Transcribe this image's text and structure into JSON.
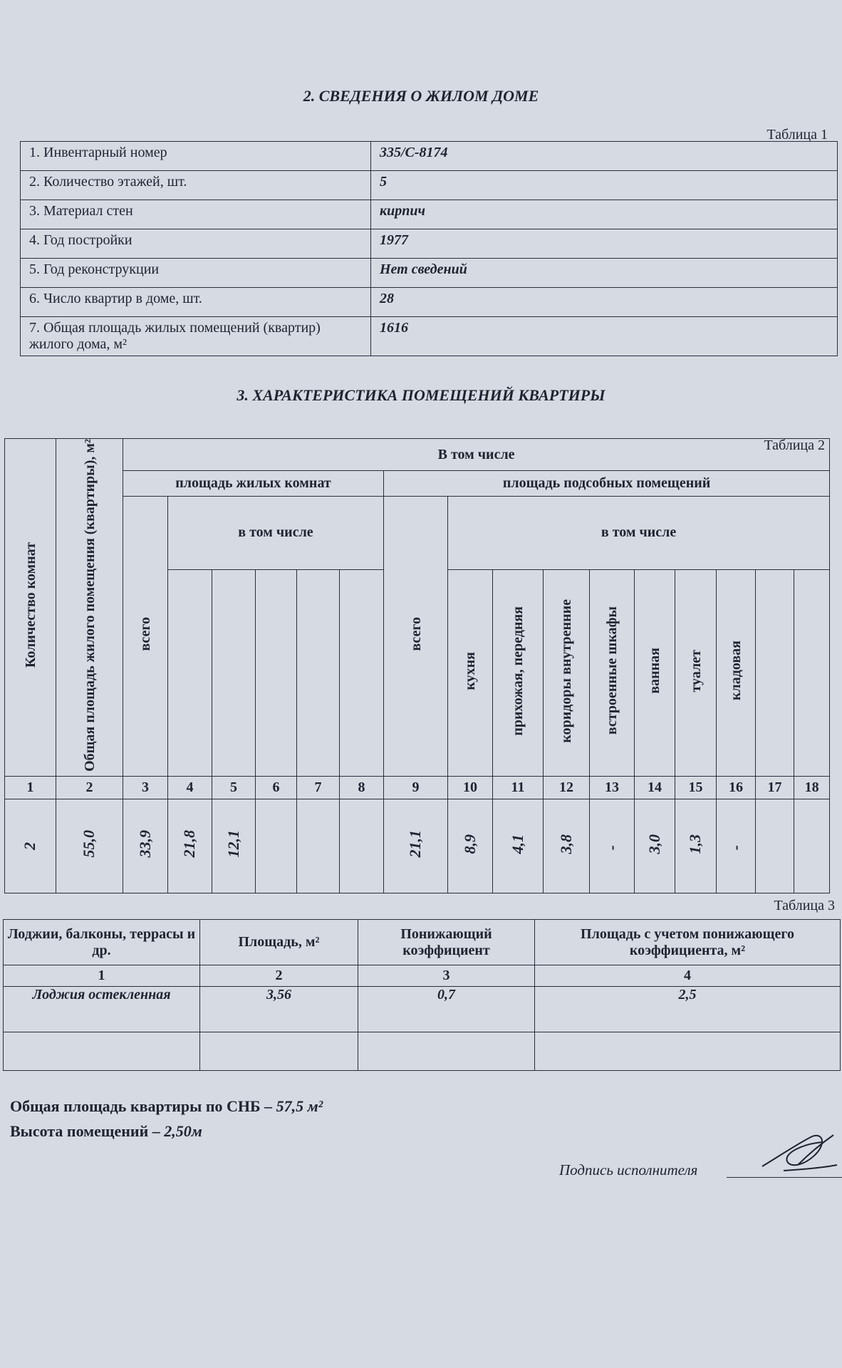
{
  "section2": {
    "title": "2. СВЕДЕНИЯ О ЖИЛОМ ДОМЕ",
    "table_caption": "Таблица 1",
    "rows": [
      {
        "label": "1. Инвентарный номер",
        "value": "335/С-8174"
      },
      {
        "label": "2. Количество этажей, шт.",
        "value": "5"
      },
      {
        "label": "3. Материал стен",
        "value": "кирпич"
      },
      {
        "label": "4. Год постройки",
        "value": "1977"
      },
      {
        "label": "5. Год реконструкции",
        "value": "Нет сведений"
      },
      {
        "label": "6. Число квартир в доме, шт.",
        "value": "28"
      },
      {
        "label": "7. Общая площадь жилых помещений (квартир) жилого дома, м²",
        "value": "1616"
      }
    ]
  },
  "section3": {
    "title": "3. ХАРАКТЕРИСТИКА ПОМЕЩЕНИЙ КВАРТИРЫ",
    "table_caption": "Таблица 2",
    "headers": {
      "rooms_count": "Количество комнат",
      "total_area": "Общая площадь жилого помещения (квартиры), м²",
      "including": "В том числе",
      "living_area": "площадь жилых комнат",
      "living_including": "в том числе",
      "living_total": "всего",
      "aux_area": "площадь подсобных помещений",
      "aux_total": "всего",
      "aux_including": "в том числе",
      "aux_cols": [
        "кухня",
        "прихожая, передняя",
        "коридоры внутренние",
        "встроенные шкафы",
        "ванная",
        "туалет",
        "кладовая",
        "",
        ""
      ]
    },
    "column_numbers": [
      "1",
      "2",
      "3",
      "4",
      "5",
      "6",
      "7",
      "8",
      "9",
      "10",
      "11",
      "12",
      "13",
      "14",
      "15",
      "16",
      "17",
      "18"
    ],
    "values": [
      "2",
      "55,0",
      "33,9",
      "21,8",
      "12,1",
      "",
      "",
      "",
      "21,1",
      "8,9",
      "4,1",
      "3,8",
      "-",
      "3,0",
      "1,3",
      "-",
      "",
      ""
    ]
  },
  "table3": {
    "caption": "Таблица 3",
    "headers": [
      "Лоджии, балконы, террасы и др.",
      "Площадь, м²",
      "Понижающий коэффициент",
      "Площадь с учетом понижающего коэффициента, м²"
    ],
    "column_numbers": [
      "1",
      "2",
      "3",
      "4"
    ],
    "rows": [
      [
        "Лоджия остекленная",
        "3,56",
        "0,7",
        "2,5"
      ],
      [
        "",
        "",
        "",
        ""
      ]
    ]
  },
  "footer": {
    "total_label": "Общая площадь квартиры по СНБ – ",
    "total_value": "57,5 м²",
    "height_label": "Высота помещений – ",
    "height_value": "2,50м",
    "signature_label": "Подпись исполнителя"
  }
}
